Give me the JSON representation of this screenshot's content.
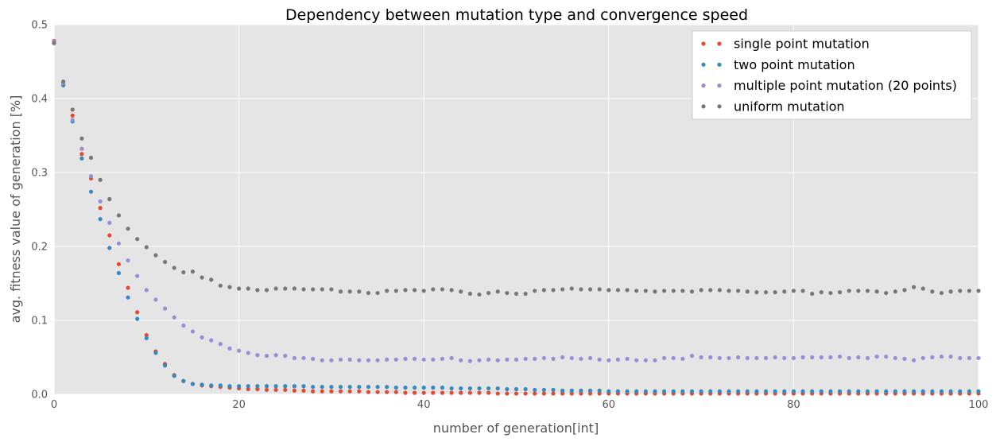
{
  "chart_data": {
    "type": "scatter",
    "title": "Dependency between mutation type and convergence speed",
    "xlabel": "number of generation[int]",
    "ylabel": "avg. fitness value of generation [%]",
    "xlim": [
      0,
      100
    ],
    "ylim": [
      0,
      0.5
    ],
    "x_ticks": [
      0,
      20,
      40,
      60,
      80,
      100
    ],
    "x_tick_labels": [
      "0",
      "20",
      "40",
      "60",
      "80",
      "100"
    ],
    "y_ticks": [
      0.0,
      0.1,
      0.2,
      0.3,
      0.4,
      0.5
    ],
    "y_tick_labels": [
      "0.0",
      "0.1",
      "0.2",
      "0.3",
      "0.4",
      "0.5"
    ],
    "grid": true,
    "background": "#E5E5E5",
    "legend_position": "top-right",
    "series": [
      {
        "name": "single point mutation",
        "color": "#E24A33",
        "x": [
          0,
          1,
          2,
          3,
          4,
          5,
          6,
          7,
          8,
          9,
          10,
          11,
          12,
          13,
          14,
          15,
          16,
          17,
          18,
          19,
          20,
          21,
          22,
          23,
          24,
          25,
          26,
          27,
          28,
          29,
          30,
          31,
          32,
          33,
          34,
          35,
          36,
          37,
          38,
          39,
          40,
          41,
          42,
          43,
          44,
          45,
          46,
          47,
          48,
          49,
          50,
          51,
          52,
          53,
          54,
          55,
          56,
          57,
          58,
          59,
          60,
          61,
          62,
          63,
          64,
          65,
          66,
          67,
          68,
          69,
          70,
          71,
          72,
          73,
          74,
          75,
          76,
          77,
          78,
          79,
          80,
          81,
          82,
          83,
          84,
          85,
          86,
          87,
          88,
          89,
          90,
          91,
          92,
          93,
          94,
          95,
          96,
          97,
          98,
          99,
          100
        ],
        "values": [
          0.478,
          0.422,
          0.377,
          0.325,
          0.292,
          0.252,
          0.215,
          0.176,
          0.144,
          0.111,
          0.08,
          0.058,
          0.041,
          0.026,
          0.018,
          0.014,
          0.012,
          0.011,
          0.01,
          0.009,
          0.008,
          0.007,
          0.007,
          0.006,
          0.006,
          0.006,
          0.005,
          0.005,
          0.004,
          0.004,
          0.004,
          0.004,
          0.004,
          0.004,
          0.003,
          0.003,
          0.003,
          0.003,
          0.002,
          0.002,
          0.002,
          0.002,
          0.002,
          0.002,
          0.002,
          0.002,
          0.002,
          0.002,
          0.001,
          0.001,
          0.001,
          0.001,
          0.001,
          0.001,
          0.001,
          0.001,
          0.001,
          0.001,
          0.001,
          0.001,
          0.001,
          0.001,
          0.001,
          0.001,
          0.001,
          0.001,
          0.001,
          0.001,
          0.001,
          0.001,
          0.001,
          0.001,
          0.001,
          0.001,
          0.001,
          0.001,
          0.001,
          0.001,
          0.001,
          0.001,
          0.001,
          0.001,
          0.001,
          0.001,
          0.001,
          0.001,
          0.001,
          0.001,
          0.001,
          0.001,
          0.001,
          0.001,
          0.001,
          0.001,
          0.001,
          0.001,
          0.001,
          0.001,
          0.001,
          0.001,
          0.001
        ]
      },
      {
        "name": "two point mutation",
        "color": "#348ABD",
        "x": [
          0,
          1,
          2,
          3,
          4,
          5,
          6,
          7,
          8,
          9,
          10,
          11,
          12,
          13,
          14,
          15,
          16,
          17,
          18,
          19,
          20,
          21,
          22,
          23,
          24,
          25,
          26,
          27,
          28,
          29,
          30,
          31,
          32,
          33,
          34,
          35,
          36,
          37,
          38,
          39,
          40,
          41,
          42,
          43,
          44,
          45,
          46,
          47,
          48,
          49,
          50,
          51,
          52,
          53,
          54,
          55,
          56,
          57,
          58,
          59,
          60,
          61,
          62,
          63,
          64,
          65,
          66,
          67,
          68,
          69,
          70,
          71,
          72,
          73,
          74,
          75,
          76,
          77,
          78,
          79,
          80,
          81,
          82,
          83,
          84,
          85,
          86,
          87,
          88,
          89,
          90,
          91,
          92,
          93,
          94,
          95,
          96,
          97,
          98,
          99,
          100
        ],
        "values": [
          0.476,
          0.418,
          0.369,
          0.319,
          0.274,
          0.237,
          0.198,
          0.164,
          0.131,
          0.102,
          0.076,
          0.056,
          0.039,
          0.025,
          0.018,
          0.014,
          0.013,
          0.012,
          0.012,
          0.011,
          0.011,
          0.011,
          0.011,
          0.011,
          0.011,
          0.011,
          0.011,
          0.011,
          0.01,
          0.01,
          0.01,
          0.01,
          0.01,
          0.01,
          0.01,
          0.01,
          0.01,
          0.009,
          0.009,
          0.009,
          0.009,
          0.009,
          0.009,
          0.008,
          0.008,
          0.008,
          0.008,
          0.008,
          0.008,
          0.007,
          0.007,
          0.007,
          0.006,
          0.006,
          0.006,
          0.005,
          0.005,
          0.005,
          0.005,
          0.005,
          0.004,
          0.004,
          0.004,
          0.004,
          0.004,
          0.004,
          0.004,
          0.004,
          0.004,
          0.004,
          0.004,
          0.004,
          0.004,
          0.004,
          0.004,
          0.004,
          0.004,
          0.004,
          0.004,
          0.004,
          0.004,
          0.004,
          0.004,
          0.004,
          0.004,
          0.004,
          0.004,
          0.004,
          0.004,
          0.004,
          0.004,
          0.004,
          0.004,
          0.004,
          0.004,
          0.004,
          0.004,
          0.004,
          0.004,
          0.004,
          0.004
        ]
      },
      {
        "name": "multiple point mutation (20 points)",
        "color": "#988ED5",
        "x": [
          0,
          1,
          2,
          3,
          4,
          5,
          6,
          7,
          8,
          9,
          10,
          11,
          12,
          13,
          14,
          15,
          16,
          17,
          18,
          19,
          20,
          21,
          22,
          23,
          24,
          25,
          26,
          27,
          28,
          29,
          30,
          31,
          32,
          33,
          34,
          35,
          36,
          37,
          38,
          39,
          40,
          41,
          42,
          43,
          44,
          45,
          46,
          47,
          48,
          49,
          50,
          51,
          52,
          53,
          54,
          55,
          56,
          57,
          58,
          59,
          60,
          61,
          62,
          63,
          64,
          65,
          66,
          67,
          68,
          69,
          70,
          71,
          72,
          73,
          74,
          75,
          76,
          77,
          78,
          79,
          80,
          81,
          82,
          83,
          84,
          85,
          86,
          87,
          88,
          89,
          90,
          91,
          92,
          93,
          94,
          95,
          96,
          97,
          98,
          99,
          100
        ],
        "values": [
          0.477,
          0.421,
          0.371,
          0.332,
          0.295,
          0.261,
          0.232,
          0.204,
          0.181,
          0.16,
          0.141,
          0.128,
          0.116,
          0.104,
          0.093,
          0.085,
          0.077,
          0.073,
          0.068,
          0.062,
          0.059,
          0.056,
          0.053,
          0.052,
          0.053,
          0.052,
          0.049,
          0.049,
          0.048,
          0.046,
          0.046,
          0.047,
          0.047,
          0.046,
          0.046,
          0.046,
          0.047,
          0.047,
          0.048,
          0.048,
          0.047,
          0.047,
          0.048,
          0.049,
          0.046,
          0.045,
          0.046,
          0.047,
          0.046,
          0.047,
          0.047,
          0.048,
          0.048,
          0.049,
          0.048,
          0.05,
          0.049,
          0.048,
          0.049,
          0.047,
          0.046,
          0.047,
          0.048,
          0.046,
          0.046,
          0.046,
          0.049,
          0.049,
          0.048,
          0.052,
          0.05,
          0.05,
          0.049,
          0.049,
          0.05,
          0.049,
          0.049,
          0.049,
          0.05,
          0.049,
          0.049,
          0.05,
          0.05,
          0.05,
          0.05,
          0.051,
          0.049,
          0.05,
          0.049,
          0.051,
          0.051,
          0.049,
          0.048,
          0.046,
          0.049,
          0.05,
          0.051,
          0.051,
          0.049,
          0.049,
          0.049
        ]
      },
      {
        "name": "uniform mutation",
        "color": "#777777",
        "x": [
          0,
          1,
          2,
          3,
          4,
          5,
          6,
          7,
          8,
          9,
          10,
          11,
          12,
          13,
          14,
          15,
          16,
          17,
          18,
          19,
          20,
          21,
          22,
          23,
          24,
          25,
          26,
          27,
          28,
          29,
          30,
          31,
          32,
          33,
          34,
          35,
          36,
          37,
          38,
          39,
          40,
          41,
          42,
          43,
          44,
          45,
          46,
          47,
          48,
          49,
          50,
          51,
          52,
          53,
          54,
          55,
          56,
          57,
          58,
          59,
          60,
          61,
          62,
          63,
          64,
          65,
          66,
          67,
          68,
          69,
          70,
          71,
          72,
          73,
          74,
          75,
          76,
          77,
          78,
          79,
          80,
          81,
          82,
          83,
          84,
          85,
          86,
          87,
          88,
          89,
          90,
          91,
          92,
          93,
          94,
          95,
          96,
          97,
          98,
          99,
          100
        ],
        "values": [
          0.475,
          0.423,
          0.385,
          0.346,
          0.32,
          0.29,
          0.264,
          0.242,
          0.224,
          0.21,
          0.199,
          0.188,
          0.179,
          0.171,
          0.165,
          0.166,
          0.158,
          0.155,
          0.147,
          0.145,
          0.143,
          0.143,
          0.141,
          0.141,
          0.143,
          0.143,
          0.143,
          0.142,
          0.142,
          0.142,
          0.142,
          0.139,
          0.139,
          0.139,
          0.137,
          0.137,
          0.14,
          0.14,
          0.141,
          0.141,
          0.14,
          0.142,
          0.142,
          0.141,
          0.139,
          0.136,
          0.135,
          0.137,
          0.139,
          0.137,
          0.136,
          0.136,
          0.14,
          0.141,
          0.141,
          0.142,
          0.143,
          0.142,
          0.142,
          0.142,
          0.141,
          0.141,
          0.141,
          0.14,
          0.14,
          0.139,
          0.14,
          0.14,
          0.14,
          0.139,
          0.141,
          0.141,
          0.141,
          0.14,
          0.14,
          0.139,
          0.138,
          0.138,
          0.138,
          0.139,
          0.14,
          0.14,
          0.136,
          0.138,
          0.137,
          0.138,
          0.14,
          0.14,
          0.14,
          0.139,
          0.137,
          0.139,
          0.141,
          0.145,
          0.143,
          0.139,
          0.137,
          0.139,
          0.14,
          0.14,
          0.14
        ]
      }
    ]
  }
}
